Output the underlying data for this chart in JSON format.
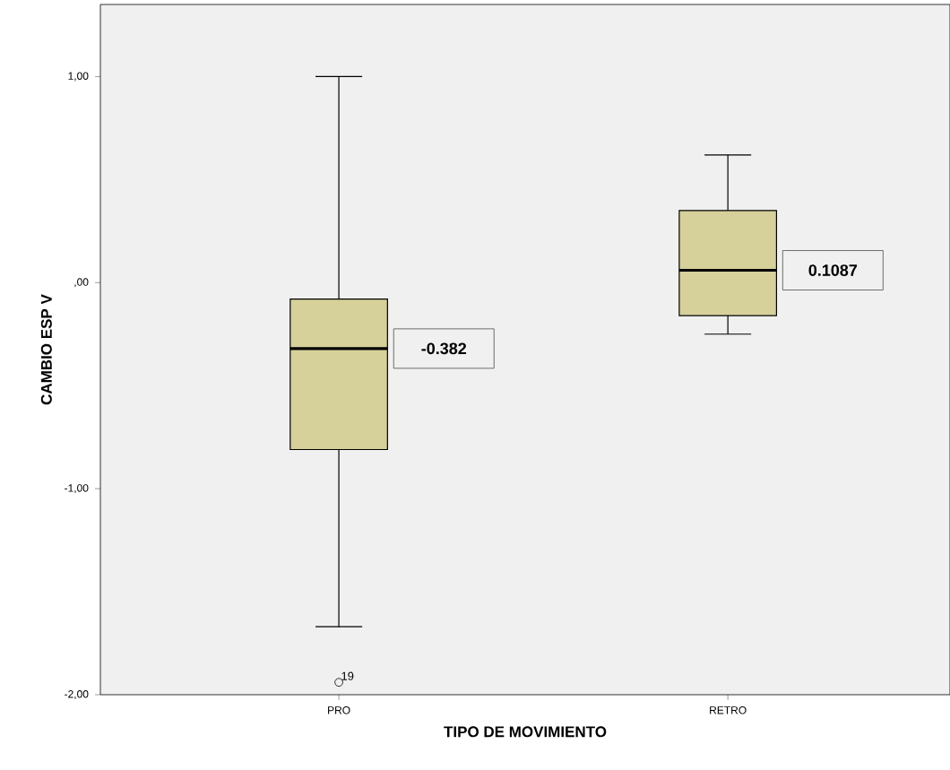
{
  "chart_data": {
    "type": "box",
    "xlabel": "TIPO DE MOVIMIENTO",
    "ylabel": "CAMBIO ESP V",
    "categories": [
      "PRO",
      "RETRO"
    ],
    "color": "#d6d09a",
    "boxes": [
      {
        "low": -1.67,
        "q1": -0.81,
        "median": -0.32,
        "q3": -0.08,
        "high": 1.0,
        "outliers": [
          -1.94
        ]
      },
      {
        "low": -0.25,
        "q1": -0.16,
        "median": 0.06,
        "q3": 0.35,
        "high": 0.62
      }
    ],
    "ylim": [
      -2.0,
      1.35
    ],
    "yticks": [
      {
        "value": -2.0,
        "label": "-2,00"
      },
      {
        "value": -1.0,
        "label": "-1,00"
      },
      {
        "value": 0.0,
        "label": ",00"
      },
      {
        "value": 1.0,
        "label": "1,00"
      }
    ],
    "annotations": [
      "-0.382",
      "0.1087",
      "19"
    ]
  }
}
